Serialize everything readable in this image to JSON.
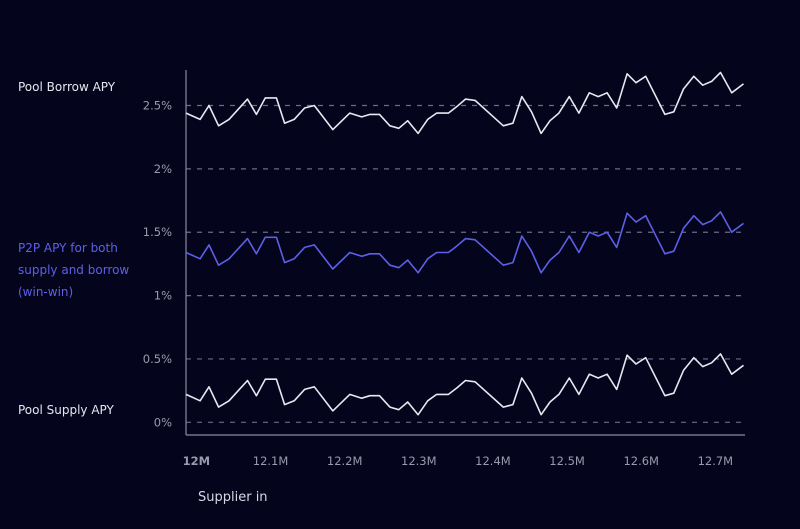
{
  "chart_data": {
    "type": "line",
    "xlabel": "Supplier in",
    "ylabel": "",
    "xlim": [
      11.986,
      12.74
    ],
    "ylim": [
      -0.1,
      2.78
    ],
    "grid": "horizontal dashed at y ticks",
    "y_ticks": [
      0,
      0.5,
      1,
      1.5,
      2,
      2.5
    ],
    "y_tick_labels": [
      "0%",
      "0.5%",
      "1%",
      "1.5%",
      "2%",
      "2.5%"
    ],
    "x_ticks": [
      12,
      12.1,
      12.2,
      12.3,
      12.4,
      12.5,
      12.6,
      12.7
    ],
    "x_tick_labels": [
      "12M",
      "12.1M",
      "12.2M",
      "12.3M",
      "12.4M",
      "12.5M",
      "12.6M",
      "12.7M"
    ],
    "x": [
      11.986,
      12.005,
      12.017,
      12.03,
      12.044,
      12.069,
      12.081,
      12.093,
      12.108,
      12.119,
      12.132,
      12.146,
      12.159,
      12.184,
      12.207,
      12.223,
      12.234,
      12.247,
      12.261,
      12.273,
      12.285,
      12.299,
      12.312,
      12.324,
      12.34,
      12.351,
      12.363,
      12.376,
      12.414,
      12.427,
      12.439,
      12.452,
      12.465,
      12.477,
      12.489,
      12.503,
      12.516,
      12.53,
      12.542,
      12.554,
      12.567,
      12.581,
      12.593,
      12.606,
      12.632,
      12.644,
      12.657,
      12.671,
      12.683,
      12.695,
      12.707,
      12.722,
      12.738
    ],
    "series": [
      {
        "name": "Pool Borrow APY",
        "color": "#e8e8f0",
        "values": [
          2.44,
          2.39,
          2.5,
          2.34,
          2.39,
          2.55,
          2.43,
          2.56,
          2.56,
          2.36,
          2.39,
          2.48,
          2.5,
          2.31,
          2.44,
          2.41,
          2.43,
          2.43,
          2.34,
          2.32,
          2.38,
          2.28,
          2.39,
          2.44,
          2.44,
          2.49,
          2.55,
          2.54,
          2.34,
          2.36,
          2.57,
          2.45,
          2.28,
          2.38,
          2.44,
          2.57,
          2.44,
          2.6,
          2.57,
          2.6,
          2.48,
          2.75,
          2.68,
          2.73,
          2.43,
          2.45,
          2.63,
          2.73,
          2.66,
          2.69,
          2.76,
          2.6,
          2.67
        ]
      },
      {
        "name": "P2P APY for both supply and borrow (win-win)",
        "color": "#5d60e6",
        "values": [
          1.34,
          1.29,
          1.4,
          1.24,
          1.29,
          1.45,
          1.33,
          1.46,
          1.46,
          1.26,
          1.29,
          1.38,
          1.4,
          1.21,
          1.34,
          1.31,
          1.33,
          1.33,
          1.24,
          1.22,
          1.28,
          1.18,
          1.29,
          1.34,
          1.34,
          1.39,
          1.45,
          1.44,
          1.24,
          1.26,
          1.47,
          1.35,
          1.18,
          1.28,
          1.34,
          1.47,
          1.34,
          1.5,
          1.47,
          1.5,
          1.38,
          1.65,
          1.58,
          1.63,
          1.33,
          1.35,
          1.53,
          1.63,
          1.56,
          1.59,
          1.66,
          1.5,
          1.57
        ]
      },
      {
        "name": "Pool Supply APY",
        "color": "#e8e8f0",
        "values": [
          0.22,
          0.17,
          0.28,
          0.12,
          0.17,
          0.33,
          0.21,
          0.34,
          0.34,
          0.14,
          0.17,
          0.26,
          0.28,
          0.09,
          0.22,
          0.19,
          0.21,
          0.21,
          0.12,
          0.1,
          0.16,
          0.06,
          0.17,
          0.22,
          0.22,
          0.27,
          0.33,
          0.32,
          0.12,
          0.14,
          0.35,
          0.23,
          0.06,
          0.16,
          0.22,
          0.35,
          0.22,
          0.38,
          0.35,
          0.38,
          0.26,
          0.53,
          0.46,
          0.51,
          0.21,
          0.23,
          0.41,
          0.51,
          0.44,
          0.47,
          0.54,
          0.38,
          0.45
        ]
      }
    ]
  },
  "labels": {
    "borrow": "Pool Borrow APY",
    "p2p": "P2P APY for both supply and borrow (win-win)",
    "supply": "Pool Supply APY"
  }
}
